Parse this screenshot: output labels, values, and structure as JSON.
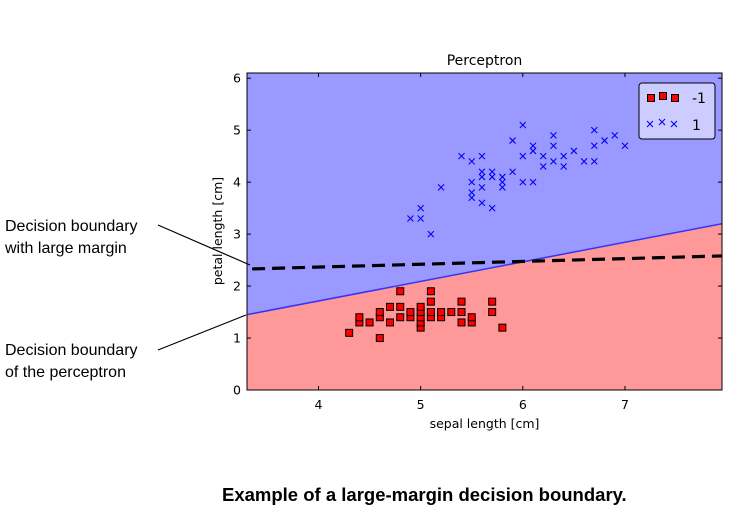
{
  "chart_data": {
    "type": "scatter",
    "title": "Perceptron",
    "xlabel": "sepal length [cm]",
    "ylabel": "petal length [cm]",
    "xlim": [
      3.3,
      7.95
    ],
    "ylim": [
      0,
      6.1
    ],
    "xticks": [
      4,
      5,
      6,
      7
    ],
    "yticks": [
      0,
      1,
      2,
      3,
      4,
      5,
      6
    ],
    "grid": false,
    "legend_position": "top-right",
    "regions": [
      {
        "class": "1",
        "color": "#9999ff",
        "side": "above"
      },
      {
        "class": "-1",
        "color": "#ff9999",
        "side": "below"
      }
    ],
    "perceptron_boundary": {
      "label": "Decision boundary of the perceptron",
      "points": [
        [
          3.3,
          1.45
        ],
        [
          7.95,
          3.2
        ]
      ],
      "color": "#3333ff"
    },
    "large_margin_boundary": {
      "label": "Decision boundary with large margin",
      "points": [
        [
          3.35,
          2.33
        ],
        [
          7.95,
          2.58
        ]
      ],
      "color": "#000000",
      "style": "dashed"
    },
    "series": [
      {
        "name": "-1",
        "marker": "square",
        "color": "#ff0000",
        "points": [
          [
            4.3,
            1.1
          ],
          [
            4.4,
            1.3
          ],
          [
            4.4,
            1.4
          ],
          [
            4.5,
            1.3
          ],
          [
            4.6,
            1.0
          ],
          [
            4.6,
            1.4
          ],
          [
            4.6,
            1.5
          ],
          [
            4.7,
            1.3
          ],
          [
            4.7,
            1.6
          ],
          [
            4.8,
            1.4
          ],
          [
            4.8,
            1.6
          ],
          [
            4.8,
            1.9
          ],
          [
            4.9,
            1.4
          ],
          [
            4.9,
            1.5
          ],
          [
            5.0,
            1.2
          ],
          [
            5.0,
            1.3
          ],
          [
            5.0,
            1.4
          ],
          [
            5.0,
            1.5
          ],
          [
            5.0,
            1.6
          ],
          [
            5.1,
            1.4
          ],
          [
            5.1,
            1.5
          ],
          [
            5.1,
            1.7
          ],
          [
            5.1,
            1.9
          ],
          [
            5.2,
            1.4
          ],
          [
            5.2,
            1.5
          ],
          [
            5.3,
            1.5
          ],
          [
            5.4,
            1.3
          ],
          [
            5.4,
            1.5
          ],
          [
            5.4,
            1.7
          ],
          [
            5.5,
            1.3
          ],
          [
            5.5,
            1.4
          ],
          [
            5.7,
            1.5
          ],
          [
            5.7,
            1.7
          ],
          [
            5.8,
            1.2
          ]
        ]
      },
      {
        "name": "1",
        "marker": "x",
        "color": "#0000ff",
        "points": [
          [
            4.9,
            3.3
          ],
          [
            5.0,
            3.3
          ],
          [
            5.0,
            3.5
          ],
          [
            5.1,
            3.0
          ],
          [
            5.2,
            3.9
          ],
          [
            5.4,
            4.5
          ],
          [
            5.5,
            3.7
          ],
          [
            5.5,
            3.8
          ],
          [
            5.5,
            4.0
          ],
          [
            5.5,
            4.4
          ],
          [
            5.6,
            3.6
          ],
          [
            5.6,
            3.9
          ],
          [
            5.6,
            4.1
          ],
          [
            5.6,
            4.2
          ],
          [
            5.6,
            4.5
          ],
          [
            5.7,
            3.5
          ],
          [
            5.7,
            4.1
          ],
          [
            5.7,
            4.2
          ],
          [
            5.8,
            3.9
          ],
          [
            5.8,
            4.0
          ],
          [
            5.8,
            4.1
          ],
          [
            5.9,
            4.2
          ],
          [
            5.9,
            4.8
          ],
          [
            6.0,
            4.0
          ],
          [
            6.0,
            4.5
          ],
          [
            6.0,
            5.1
          ],
          [
            6.1,
            4.0
          ],
          [
            6.1,
            4.6
          ],
          [
            6.1,
            4.7
          ],
          [
            6.2,
            4.3
          ],
          [
            6.2,
            4.5
          ],
          [
            6.3,
            4.4
          ],
          [
            6.3,
            4.7
          ],
          [
            6.3,
            4.9
          ],
          [
            6.4,
            4.3
          ],
          [
            6.4,
            4.5
          ],
          [
            6.5,
            4.6
          ],
          [
            6.6,
            4.4
          ],
          [
            6.7,
            4.4
          ],
          [
            6.7,
            4.7
          ],
          [
            6.7,
            5.0
          ],
          [
            6.8,
            4.8
          ],
          [
            6.9,
            4.9
          ],
          [
            7.0,
            4.7
          ]
        ]
      }
    ]
  },
  "annotations": {
    "large_margin": {
      "line1": "Decision boundary",
      "line2": "with large margin"
    },
    "perceptron": {
      "line1": "Decision boundary",
      "line2": "of the perceptron"
    }
  },
  "caption": "Example of a large-margin decision boundary."
}
